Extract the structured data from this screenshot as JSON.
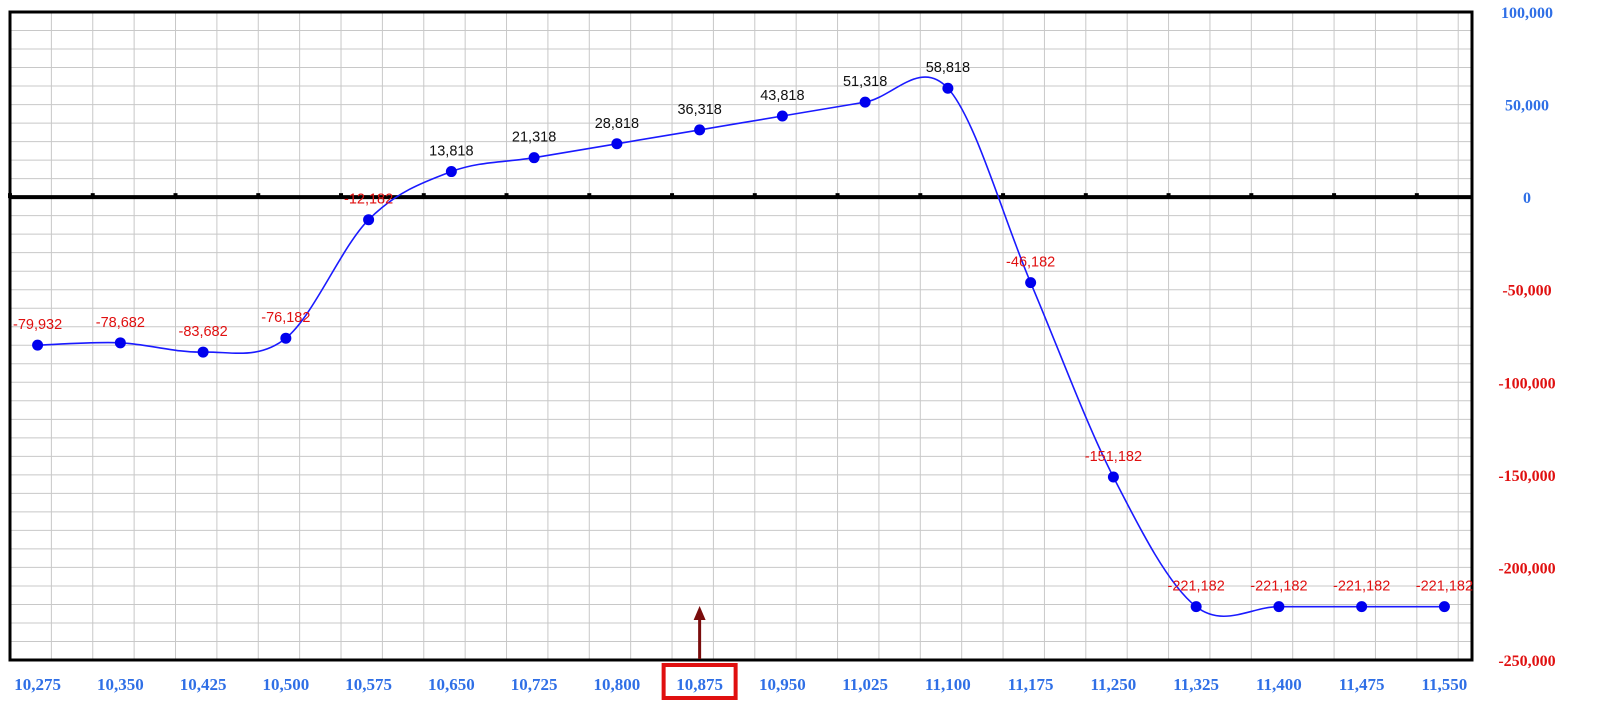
{
  "chart_data": {
    "type": "line",
    "x": [
      10275,
      10350,
      10425,
      10500,
      10575,
      10650,
      10725,
      10800,
      10875,
      10950,
      11025,
      11100,
      11175,
      11250,
      11325,
      11400,
      11475,
      11550
    ],
    "x_labels": [
      "10,275",
      "10,350",
      "10,425",
      "10,500",
      "10,575",
      "10,650",
      "10,725",
      "10,800",
      "10,875",
      "10,950",
      "11,025",
      "11,100",
      "11,175",
      "11,250",
      "11,325",
      "11,400",
      "11,475",
      "11,550"
    ],
    "series": [
      {
        "values": [
          -79932,
          -78682,
          -83682,
          -76182,
          -12182,
          13818,
          21318,
          28818,
          36318,
          43818,
          51318,
          58818,
          -46182,
          -151182,
          -221182,
          -221182,
          -221182,
          -221182
        ],
        "labels": [
          "-79,932",
          "-78,682",
          "-83,682",
          "-76,182",
          "-12,182",
          "13,818",
          "21,318",
          "28,818",
          "36,318",
          "43,818",
          "51,318",
          "58,818",
          "-46,182",
          "-151,182",
          "-221,182",
          "-221,182",
          "-221,182",
          "-221,182"
        ]
      }
    ],
    "y_ticks": [
      100000,
      50000,
      0,
      -50000,
      -100000,
      -150000,
      -200000,
      -250000
    ],
    "y_tick_labels": [
      "100,000",
      "50,000",
      "0",
      "-50,000",
      "-100,000",
      "-150,000",
      "-200,000",
      "-250,000"
    ],
    "ylim": [
      -250000,
      100000
    ],
    "xlim": [
      10250,
      11575
    ],
    "highlighted_x": 10875,
    "grid": true,
    "colors": {
      "line": "#1a1aff",
      "marker": "#0000ee",
      "positive_label": "#111111",
      "negative_label": "#e01010",
      "positive_tick": "#2f6fe6",
      "negative_tick": "#e01010",
      "x_tick": "#2f6fe6",
      "highlight_box": "#e01010",
      "arrow": "#7a0c0c",
      "grid": "#c8c8c8"
    }
  }
}
